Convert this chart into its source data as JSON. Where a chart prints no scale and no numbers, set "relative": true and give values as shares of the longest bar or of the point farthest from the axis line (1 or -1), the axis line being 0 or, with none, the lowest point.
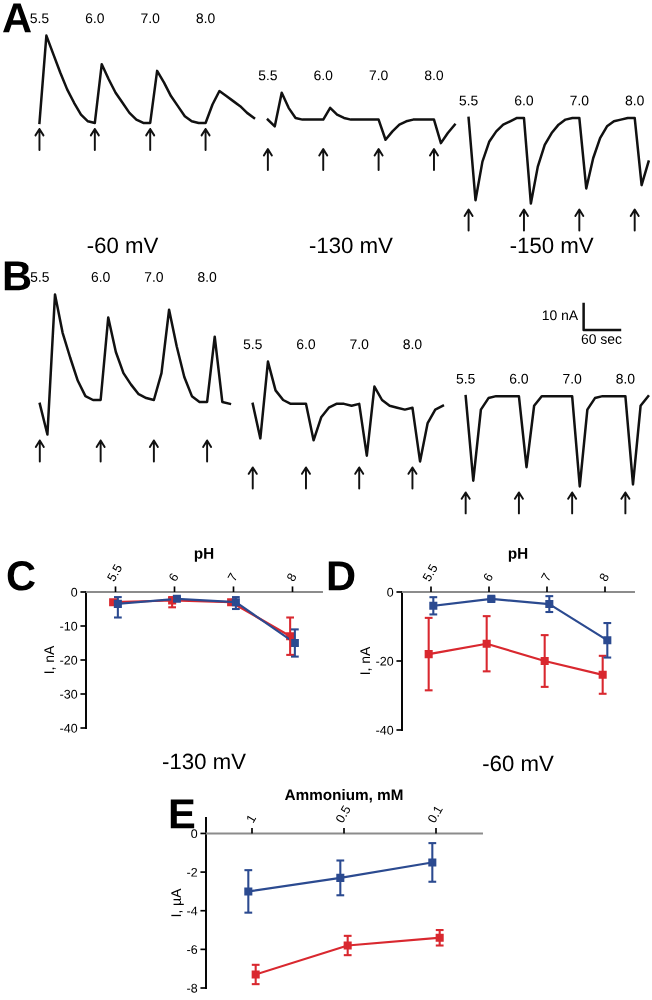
{
  "chart_data": [
    {
      "type": "line",
      "title": "A",
      "relative": true,
      "categories": [
        "5.5",
        null,
        null,
        null,
        null,
        null,
        null,
        null,
        "6.0",
        null,
        null,
        null,
        null,
        null,
        null,
        null,
        "7.0",
        null,
        null,
        null,
        null,
        null,
        null,
        null,
        "8.0",
        null,
        null,
        null,
        null,
        null,
        null,
        null,
        null,
        "5.5",
        null,
        null,
        null,
        null,
        null,
        null,
        null,
        "6.0",
        null,
        null,
        null,
        null,
        null,
        null,
        null,
        "7.0",
        null,
        null,
        null,
        null,
        null,
        null,
        null,
        "8.0",
        null,
        null,
        null,
        null,
        "5.5",
        null,
        null,
        null,
        null,
        null,
        null,
        null,
        "6.0",
        null,
        null,
        null,
        null,
        null,
        null,
        null,
        "7.0",
        null,
        null,
        null,
        null,
        null,
        null,
        null,
        "8.0",
        null,
        null
      ],
      "series": [
        {
          "color": "#111111",
          "values": [
            0.48,
            1,
            0.89,
            0.78,
            0.68,
            0.6,
            0.53,
            0.49,
            0.48,
            0.83,
            0.74,
            0.66,
            0.6,
            0.54,
            0.5,
            0.48,
            0.48,
            0.79,
            0.72,
            0.64,
            0.58,
            0.52,
            0.49,
            0.48,
            0.48,
            0.59,
            0.67,
            0.64,
            0.61,
            0.58,
            0.54,
            0.51,
            null,
            null,
            null,
            null,
            null,
            null,
            null,
            null,
            null,
            null,
            null,
            null,
            null,
            null,
            null,
            null,
            null,
            null,
            null,
            null,
            null,
            null,
            null,
            null,
            null,
            null,
            null,
            null,
            null,
            null,
            null,
            null,
            null,
            null,
            null,
            null,
            null,
            null,
            null,
            null,
            null,
            null,
            null,
            null,
            null,
            null,
            null,
            null,
            null,
            null,
            null,
            null,
            null,
            null,
            null,
            null,
            null
          ]
        },
        {
          "color": "#111111",
          "values": [
            null,
            null,
            null,
            null,
            null,
            null,
            null,
            null,
            null,
            null,
            null,
            null,
            null,
            null,
            null,
            null,
            null,
            null,
            null,
            null,
            null,
            null,
            null,
            null,
            null,
            null,
            null,
            null,
            null,
            null,
            null,
            null,
            null,
            0.5,
            0.46,
            0.66,
            0.57,
            0.51,
            0.5,
            0.5,
            0.5,
            0.5,
            0.57,
            0.53,
            0.51,
            0.5,
            0.5,
            0.5,
            0.5,
            0.5,
            0.38,
            0.43,
            0.47,
            0.49,
            0.5,
            0.5,
            0.5,
            0.5,
            0.36,
            0.42,
            0.47,
            null,
            null,
            null,
            null,
            null,
            null,
            null,
            null,
            null,
            null,
            null,
            null,
            null,
            null,
            null,
            null,
            null,
            null,
            null,
            null,
            null,
            null,
            null,
            null,
            null,
            null,
            null,
            null
          ]
        },
        {
          "color": "#111111",
          "values": [
            null,
            null,
            null,
            null,
            null,
            null,
            null,
            null,
            null,
            null,
            null,
            null,
            null,
            null,
            null,
            null,
            null,
            null,
            null,
            null,
            null,
            null,
            null,
            null,
            null,
            null,
            null,
            null,
            null,
            null,
            null,
            null,
            null,
            null,
            null,
            null,
            null,
            null,
            null,
            null,
            null,
            null,
            null,
            null,
            null,
            null,
            null,
            null,
            null,
            null,
            null,
            null,
            null,
            null,
            null,
            null,
            null,
            null,
            null,
            null,
            null,
            null,
            0.51,
            0.02,
            0.25,
            0.37,
            0.43,
            0.47,
            0.49,
            0.51,
            0.51,
            0,
            0.22,
            0.35,
            0.42,
            0.47,
            0.5,
            0.51,
            0.51,
            0.09,
            0.27,
            0.39,
            0.46,
            0.49,
            0.5,
            0.51,
            0.51,
            0.11,
            0.25
          ]
        }
      ],
      "annotations": [
        "-60 mV",
        "-130 mV",
        "-150 mV"
      ]
    },
    {
      "type": "line",
      "title": "B",
      "relative": true,
      "categories": [
        "5.5",
        null,
        null,
        null,
        null,
        null,
        null,
        null,
        "6.0",
        null,
        null,
        null,
        null,
        null,
        null,
        "7.0",
        null,
        null,
        null,
        null,
        null,
        null,
        "8.0",
        null,
        null,
        null,
        null,
        null,
        "5.5",
        null,
        null,
        null,
        null,
        null,
        null,
        "6.0",
        null,
        null,
        null,
        null,
        null,
        null,
        "7.0",
        null,
        null,
        null,
        null,
        null,
        null,
        "8.0",
        null,
        null,
        null,
        null,
        null,
        null,
        "5.5",
        null,
        null,
        null,
        null,
        null,
        null,
        "6.0",
        null,
        null,
        null,
        null,
        null,
        null,
        "7.0",
        null,
        null,
        null,
        null,
        null,
        null,
        "8.0",
        null,
        null,
        null
      ],
      "series": [
        {
          "color": "#111111",
          "values": [
            0.43,
            0.27,
            1,
            0.8,
            0.67,
            0.55,
            0.47,
            0.45,
            0.45,
            0.88,
            0.7,
            0.59,
            0.53,
            0.48,
            0.46,
            0.45,
            0.59,
            0.92,
            0.73,
            0.57,
            0.47,
            0.44,
            0.44,
            0.78,
            0.44,
            0.43,
            null,
            null,
            null,
            null,
            null,
            null,
            null,
            null,
            null,
            null,
            null,
            null,
            null,
            null,
            null,
            null,
            null,
            null,
            null,
            null,
            null,
            null,
            null,
            null,
            null,
            null,
            null,
            null,
            null,
            null,
            null,
            null,
            null,
            null,
            null,
            null,
            null,
            null,
            null,
            null,
            null,
            null,
            null,
            null,
            null,
            null,
            null,
            null,
            null,
            null,
            null,
            null,
            null,
            null,
            null
          ]
        },
        {
          "color": "#111111",
          "values": [
            null,
            null,
            null,
            null,
            null,
            null,
            null,
            null,
            null,
            null,
            null,
            null,
            null,
            null,
            null,
            null,
            null,
            null,
            null,
            null,
            null,
            null,
            null,
            null,
            null,
            null,
            null,
            null,
            0.43,
            0.25,
            0.65,
            0.5,
            0.45,
            0.43,
            0.43,
            0.43,
            0.24,
            0.36,
            0.41,
            0.43,
            0.43,
            0.42,
            0.43,
            0.16,
            0.52,
            0.45,
            0.42,
            0.41,
            0.4,
            0.41,
            0.13,
            0.33,
            0.4,
            0.42,
            null,
            null,
            null,
            null,
            null,
            null,
            null,
            null,
            null,
            null,
            null,
            null,
            null,
            null,
            null,
            null,
            null,
            null,
            null,
            null,
            null,
            null,
            null,
            null,
            null,
            null,
            null
          ]
        },
        {
          "color": "#111111",
          "values": [
            null,
            null,
            null,
            null,
            null,
            null,
            null,
            null,
            null,
            null,
            null,
            null,
            null,
            null,
            null,
            null,
            null,
            null,
            null,
            null,
            null,
            null,
            null,
            null,
            null,
            null,
            null,
            null,
            null,
            null,
            null,
            null,
            null,
            null,
            null,
            null,
            null,
            null,
            null,
            null,
            null,
            null,
            null,
            null,
            null,
            null,
            null,
            null,
            null,
            null,
            null,
            null,
            null,
            null,
            null,
            null,
            0.47,
            0.03,
            0.4,
            0.46,
            0.47,
            0.47,
            0.47,
            0.47,
            0.1,
            0.42,
            0.47,
            0.47,
            0.47,
            0.47,
            0.47,
            0,
            0.4,
            0.46,
            0.47,
            0.47,
            0.47,
            0.47,
            0.01,
            0.42,
            0.47
          ]
        }
      ],
      "annotations": [
        "10 nA",
        "60 sec"
      ]
    },
    {
      "type": "line",
      "title": "C",
      "xlabel": "pH",
      "ylabel": "I, nA",
      "categories": [
        "5.5",
        "6",
        "7",
        "8"
      ],
      "ylim": [
        -40,
        0
      ],
      "yticks": [
        0,
        -10,
        -20,
        -30,
        -40
      ],
      "marker": "square",
      "series": [
        {
          "color": "#d9282f",
          "values": [
            -3,
            -2.5,
            -3,
            -13
          ],
          "errors": [
            null,
            [
              -4.5,
              -1.5
            ],
            null,
            5.5
          ]
        },
        {
          "color": "#2b4a90",
          "values": [
            -3.5,
            -2,
            -3,
            -15
          ],
          "errors": [
            [
              -7.5,
              -1.5
            ],
            0.5,
            [
              -5,
              -1.5
            ],
            4
          ]
        }
      ],
      "annotations": [
        "-130 mV"
      ]
    },
    {
      "type": "line",
      "title": "D",
      "xlabel": "pH",
      "ylabel": "I, nA",
      "categories": [
        "5.5",
        "6",
        "7",
        "8"
      ],
      "ylim": [
        -40,
        0
      ],
      "yticks": [
        0,
        -20,
        -40
      ],
      "marker": "square",
      "series": [
        {
          "color": "#d9282f",
          "values": [
            -18,
            -15,
            -20,
            -24
          ],
          "errors": [
            10.5,
            8,
            7.5,
            5.5
          ]
        },
        {
          "color": "#2b4a90",
          "values": [
            -4,
            -2,
            -3.5,
            -14
          ],
          "errors": [
            2.5,
            0.5,
            2.3,
            5
          ]
        }
      ],
      "annotations": [
        "-60 mV"
      ]
    },
    {
      "type": "line",
      "title": "E",
      "xlabel": "Ammonium, mM",
      "ylabel": "I, µA",
      "categories": [
        "1",
        "0.5",
        "0.1"
      ],
      "ylim": [
        -8,
        0.8
      ],
      "yticks": [
        0,
        -2,
        -4,
        -6,
        -8
      ],
      "marker": "square",
      "series": [
        {
          "color": "#2b4a90",
          "values": [
            -3,
            -2.3,
            -1.5
          ],
          "errors": [
            1.1,
            0.9,
            1
          ]
        },
        {
          "color": "#d9282f",
          "values": [
            -7.3,
            -5.8,
            -5.4
          ],
          "errors": [
            0.5,
            0.5,
            0.4
          ]
        }
      ]
    }
  ]
}
